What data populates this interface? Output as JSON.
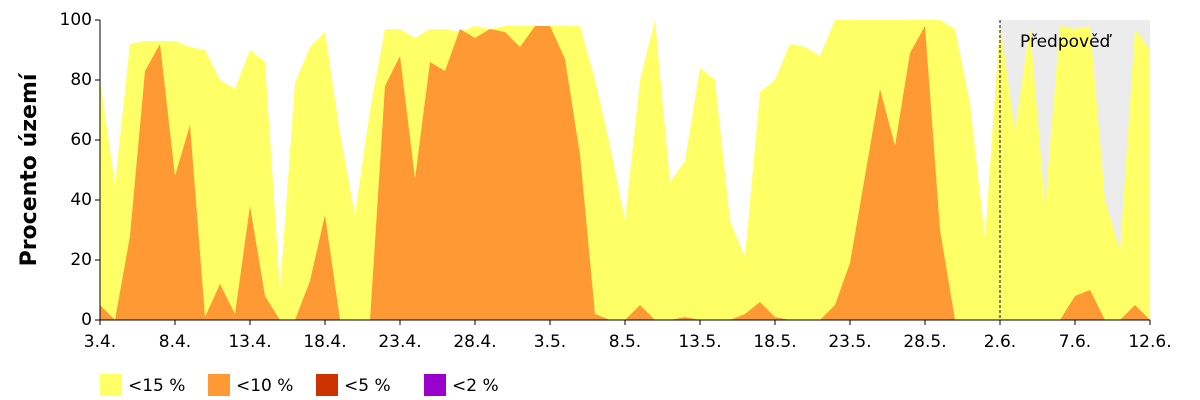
{
  "chart_data": {
    "type": "area",
    "y_label": "Procento území",
    "categories": [
      "3.4.",
      null,
      null,
      null,
      null,
      "8.4.",
      null,
      null,
      null,
      null,
      "13.4.",
      null,
      null,
      null,
      null,
      "18.4.",
      null,
      null,
      null,
      null,
      "23.4.",
      null,
      null,
      null,
      null,
      "28.4.",
      null,
      null,
      null,
      null,
      "3.5.",
      null,
      null,
      null,
      null,
      "8.5.",
      null,
      null,
      null,
      null,
      "13.5.",
      null,
      null,
      null,
      null,
      "18.5.",
      null,
      null,
      null,
      null,
      "23.5.",
      null,
      null,
      null,
      null,
      "28.5.",
      null,
      null,
      null,
      null,
      "2.6.",
      null,
      null,
      null,
      null,
      "7.6.",
      null,
      null,
      null,
      null,
      "12.6."
    ],
    "series": [
      {
        "name": "<15 %",
        "color": "#ffff66",
        "values": [
          80,
          45,
          92,
          93,
          93,
          93,
          91,
          90,
          80,
          77,
          90,
          86,
          10,
          79,
          91,
          96,
          62,
          35,
          70,
          97,
          97,
          94,
          97,
          97,
          96,
          98,
          97,
          98,
          98,
          98,
          98,
          98,
          98,
          80,
          58,
          33,
          80,
          100,
          46,
          53,
          84,
          80,
          33,
          21,
          76,
          80,
          92,
          91,
          88,
          100,
          100,
          100,
          100,
          100,
          100,
          100,
          100,
          97,
          72,
          27,
          99,
          63,
          98,
          38,
          98,
          97,
          98,
          40,
          23,
          97,
          90
        ]
      },
      {
        "name": "<10 %",
        "color": "#ff9933",
        "values": [
          5,
          0,
          28,
          83,
          92,
          48,
          65,
          1,
          12,
          2,
          38,
          8,
          0,
          0,
          13,
          35,
          0,
          0,
          0,
          78,
          88,
          47,
          86,
          83,
          97,
          94,
          97,
          96,
          91,
          98,
          98,
          87,
          55,
          2,
          0,
          0,
          5,
          0,
          0,
          1,
          0,
          0,
          0,
          2,
          6,
          1,
          0,
          0,
          0,
          5,
          19,
          48,
          77,
          58,
          89,
          98,
          30,
          0,
          0,
          0,
          0,
          0,
          0,
          0,
          0,
          8,
          10,
          0,
          0,
          5,
          0
        ]
      },
      {
        "name": "<5 %",
        "color": "#cc3300",
        "values": [
          0,
          0,
          0,
          0,
          0,
          0,
          0,
          0,
          0,
          0,
          0,
          0,
          0,
          0,
          0,
          0,
          0,
          0,
          0,
          0,
          0,
          0,
          0,
          0,
          0,
          0,
          0,
          0,
          0,
          0,
          0,
          0,
          0,
          0,
          0,
          0,
          0,
          0,
          0,
          0,
          0,
          0,
          0,
          0,
          0,
          0,
          0,
          0,
          0,
          0,
          0,
          0,
          0,
          0,
          0,
          0,
          0,
          0,
          0,
          0,
          0,
          0,
          0,
          0,
          0,
          0,
          0,
          0,
          0,
          0,
          0
        ]
      },
      {
        "name": "<2 %",
        "color": "#9900cc",
        "values": [
          0,
          0,
          0,
          0,
          0,
          0,
          0,
          0,
          0,
          0,
          0,
          0,
          0,
          0,
          0,
          0,
          0,
          0,
          0,
          0,
          0,
          0,
          0,
          0,
          0,
          0,
          0,
          0,
          0,
          0,
          0,
          0,
          0,
          0,
          0,
          0,
          0,
          0,
          0,
          0,
          0,
          0,
          0,
          0,
          0,
          0,
          0,
          0,
          0,
          0,
          0,
          0,
          0,
          0,
          0,
          0,
          0,
          0,
          0,
          0,
          0,
          0,
          0,
          0,
          0,
          0,
          0,
          0,
          0,
          0,
          0
        ]
      }
    ],
    "ylim": [
      0,
      100
    ],
    "yticks": [
      0,
      20,
      40,
      60,
      80,
      100
    ],
    "forecast_from": "2.6.",
    "forecast_label": "Předpověď",
    "forecast_color": "#ececec"
  }
}
